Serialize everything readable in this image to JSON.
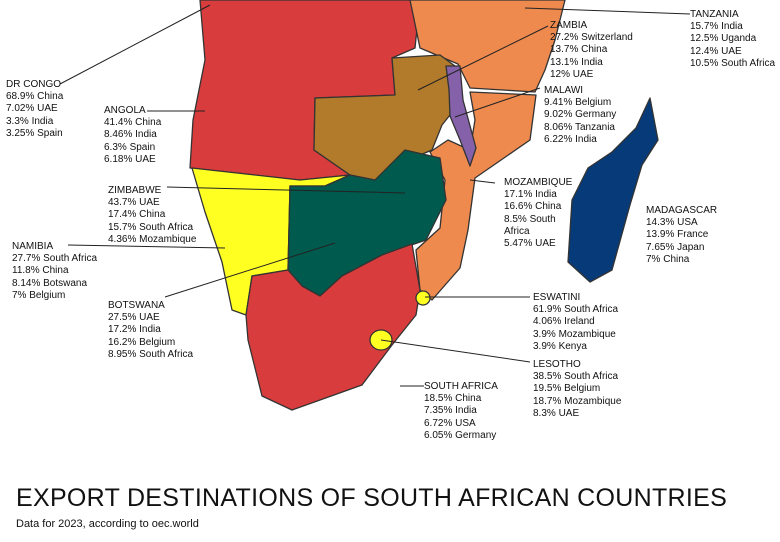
{
  "title": "EXPORT DESTINATIONS OF SOUTH AFRICAN COUNTRIES",
  "subtitle": "Data for 2023, according to oec.world",
  "colors": {
    "dr_congo_angola": "#d93c3c",
    "zambia": "#b27a2b",
    "tanzania_mozambique": "#ef8a4f",
    "malawi": "#8461a9",
    "namibia": "#ffff22",
    "zimbabwe_botswana": "#005a4d",
    "south_africa": "#d93c3c",
    "lesotho_eswatini": "#ffff22",
    "madagascar": "#063a78"
  },
  "countries": {
    "dr_congo": {
      "name": "DR CONGO",
      "lines": [
        "68.9% China",
        "7.02% UAE",
        "3.3% India",
        "3.25% Spain"
      ]
    },
    "angola": {
      "name": "ANGOLA",
      "lines": [
        "41.4% China",
        "8.46% India",
        "6.3% Spain",
        "6.18% UAE"
      ]
    },
    "zimbabwe": {
      "name": "ZIMBABWE",
      "lines": [
        "43.7% UAE",
        "17.4% China",
        "15.7% South Africa",
        "4.36% Mozambique"
      ]
    },
    "namibia": {
      "name": "NAMIBIA",
      "lines": [
        "27.7% South Africa",
        "11.8% China",
        "8.14% Botswana",
        "7% Belgium"
      ]
    },
    "botswana": {
      "name": "BOTSWANA",
      "lines": [
        "27.5% UAE",
        "17.2% India",
        "16.2% Belgium",
        "8.95% South Africa"
      ]
    },
    "tanzania": {
      "name": "TANZANIA",
      "lines": [
        "15.7% India",
        "12.5% Uganda",
        "12.4% UAE",
        "10.5% South Africa"
      ]
    },
    "zambia": {
      "name": "ZAMBIA",
      "lines": [
        "27.2% Switzerland",
        "13.7% China",
        "13.1% India",
        "12% UAE"
      ]
    },
    "malawi": {
      "name": "MALAWI",
      "lines": [
        "9.41% Belgium",
        "9.02% Germany",
        "8.06% Tanzania",
        "6.22% India"
      ]
    },
    "mozambique": {
      "name": "MOZAMBIQUE",
      "lines": [
        "17.1% India",
        "16.6% China",
        "8.5% South",
        "Africa",
        "5.47% UAE"
      ]
    },
    "madagascar": {
      "name": "MADAGASCAR",
      "lines": [
        "14.3% USA",
        "13.9% France",
        "7.65% Japan",
        "7% China"
      ]
    },
    "eswatini": {
      "name": "ESWATINI",
      "lines": [
        "61.9% South Africa",
        "4.06% Ireland",
        "3.9% Mozambique",
        "3.9% Kenya"
      ]
    },
    "lesotho": {
      "name": "LESOTHO",
      "lines": [
        "38.5% South Africa",
        "19.5% Belgium",
        "18.7% Mozambique",
        "8.3% UAE"
      ]
    },
    "south_africa": {
      "name": "SOUTH AFRICA",
      "lines": [
        "18.5% China",
        "7.35% India",
        "6.72% USA",
        "6.05% Germany"
      ]
    }
  }
}
